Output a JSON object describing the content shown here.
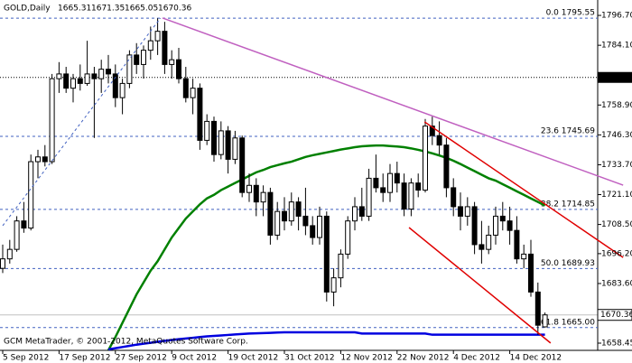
{
  "chart_data": {
    "type": "candlestick",
    "symbol": "GOLD,Daily",
    "footer": "GCM MetaTrader, © 2001-2012, MetaQuotes Software Corp.",
    "categories": [
      "5 Sep 2012",
      null,
      null,
      null,
      null,
      null,
      null,
      null,
      "17 Sep 2012",
      null,
      null,
      null,
      null,
      null,
      null,
      null,
      "27 Sep 2012",
      null,
      null,
      null,
      null,
      null,
      null,
      null,
      "9 Oct 2012",
      null,
      null,
      null,
      null,
      null,
      null,
      null,
      "19 Oct 2012",
      null,
      null,
      null,
      null,
      null,
      null,
      null,
      "31 Oct 2012",
      null,
      null,
      null,
      null,
      null,
      null,
      null,
      "12 Nov 2012",
      null,
      null,
      null,
      null,
      null,
      null,
      null,
      "22 Nov 2012",
      null,
      null,
      null,
      null,
      null,
      null,
      null,
      "4 Dec 2012",
      null,
      null,
      null,
      null,
      null,
      null,
      null,
      "14 Dec 2012",
      null,
      null,
      null,
      null,
      null
    ],
    "open": [
      1690,
      1694,
      1698,
      1710,
      1707,
      1735,
      1737,
      1735,
      1770,
      1772,
      1766,
      1770,
      1768,
      1772,
      1770,
      1774,
      1772,
      1762,
      1768,
      1780,
      1776,
      1782,
      1786,
      1790,
      1776,
      1778,
      1770,
      1762,
      1766,
      1744,
      1752,
      1738,
      1748,
      1736,
      1745,
      1722,
      1725,
      1718,
      1722,
      1704,
      1714,
      1710,
      1718,
      1712,
      1708,
      1703,
      1712,
      1680,
      1686,
      1696,
      1710,
      1716,
      1712,
      1728,
      1724,
      1722,
      1730,
      1726,
      1715,
      1726,
      1723,
      1750,
      1746,
      1742,
      1724,
      1716,
      1712,
      1716,
      1700,
      1698,
      1704,
      1712,
      1710,
      1706,
      1694,
      1696,
      1680,
      1665.31
    ],
    "high": [
      1700,
      1702,
      1712,
      1718,
      1738,
      1740,
      1742,
      1772,
      1777,
      1775,
      1772,
      1776,
      1786,
      1775,
      1778,
      1780,
      1776,
      1770,
      1782,
      1785,
      1784,
      1792,
      1795.5,
      1794,
      1782,
      1783,
      1775,
      1770,
      1768,
      1755,
      1754,
      1752,
      1750,
      1748,
      1746,
      1730,
      1728,
      1725,
      1724,
      1718,
      1720,
      1722,
      1720,
      1724,
      1712,
      1716,
      1714,
      1690,
      1698,
      1712,
      1720,
      1724,
      1732,
      1738,
      1730,
      1734,
      1735,
      1730,
      1728,
      1730,
      1753,
      1754,
      1752,
      1745,
      1728,
      1722,
      1720,
      1718,
      1710,
      1708,
      1716,
      1718,
      1716,
      1712,
      1700,
      1702,
      1684,
      1671.35
    ],
    "low": [
      1688,
      1692,
      1697,
      1705,
      1706,
      1728,
      1733,
      1734,
      1764,
      1764,
      1760,
      1765,
      1767,
      1745,
      1764,
      1768,
      1758,
      1755,
      1766,
      1772,
      1770,
      1778,
      1780,
      1772,
      1770,
      1768,
      1760,
      1755,
      1740,
      1742,
      1735,
      1736,
      1730,
      1734,
      1720,
      1718,
      1712,
      1712,
      1700,
      1702,
      1706,
      1708,
      1706,
      1704,
      1700,
      1700,
      1676,
      1674,
      1682,
      1694,
      1706,
      1710,
      1710,
      1722,
      1718,
      1718,
      1722,
      1712,
      1712,
      1720,
      1722,
      1742,
      1738,
      1720,
      1712,
      1706,
      1708,
      1696,
      1692,
      1696,
      1700,
      1706,
      1700,
      1692,
      1690,
      1678,
      1662,
      1665.05
    ],
    "close": [
      1694,
      1698,
      1710,
      1707,
      1735,
      1737,
      1735,
      1770,
      1772,
      1766,
      1770,
      1768,
      1772,
      1770,
      1774,
      1772,
      1762,
      1768,
      1780,
      1776,
      1782,
      1786,
      1790,
      1776,
      1778,
      1770,
      1762,
      1766,
      1744,
      1752,
      1738,
      1748,
      1736,
      1745,
      1722,
      1725,
      1718,
      1722,
      1704,
      1714,
      1710,
      1718,
      1712,
      1708,
      1703,
      1712,
      1680,
      1686,
      1696,
      1710,
      1716,
      1712,
      1728,
      1724,
      1722,
      1730,
      1726,
      1715,
      1726,
      1723,
      1750,
      1746,
      1742,
      1724,
      1716,
      1712,
      1716,
      1700,
      1698,
      1704,
      1712,
      1710,
      1706,
      1694,
      1696,
      1680,
      1666,
      1670.36
    ],
    "moving_averages": [
      {
        "color": "#008000",
        "values": [
          null,
          null,
          null,
          null,
          null,
          null,
          null,
          null,
          null,
          null,
          null,
          null,
          null,
          null,
          null,
          1655.4,
          1661,
          1667,
          1673,
          1679,
          1684,
          1689,
          1693,
          1698,
          1703,
          1707,
          1711,
          1714,
          1717,
          1719.5,
          1721,
          1723,
          1724.5,
          1726,
          1727.5,
          1729,
          1730.5,
          1731.5,
          1732.7,
          1733.5,
          1734.3,
          1735,
          1736,
          1737,
          1737.7,
          1738.3,
          1738.9,
          1739.5,
          1740.1,
          1740.6,
          1741.1,
          1741.5,
          1741.7,
          1741.8,
          1741.8,
          1741.6,
          1741.4,
          1741.1,
          1740.6,
          1740,
          1739.3,
          1738.5,
          1737.6,
          1736.6,
          1735.4,
          1734,
          1732.5,
          1731,
          1729.5,
          1728,
          1727,
          1725.5,
          1724,
          1722.5,
          1721,
          1719.5,
          1718,
          1716.5
        ]
      },
      {
        "color": "#0000e0",
        "values": [
          null,
          null,
          null,
          null,
          null,
          null,
          null,
          null,
          null,
          null,
          null,
          null,
          null,
          null,
          null,
          1655.8,
          1656.3,
          1656.8,
          1657.3,
          1657.8,
          1658.2,
          1658.6,
          1659,
          1659.4,
          1659.8,
          1660.1,
          1660.4,
          1660.7,
          1661,
          1661.3,
          1661.5,
          1661.7,
          1661.9,
          1662.1,
          1662.3,
          1662.5,
          1662.6,
          1662.7,
          1662.8,
          1662.9,
          1663,
          1663,
          1663,
          1663,
          1663,
          1663,
          1663,
          1663,
          1663,
          1663,
          1663,
          1662.5,
          1662.5,
          1662.5,
          1662.5,
          1662.5,
          1662.5,
          1662.5,
          1662.5,
          1662.5,
          1662.5,
          1662,
          1662,
          1662,
          1662,
          1662,
          1662,
          1662,
          1662,
          1662,
          1662,
          1662,
          1662,
          1662,
          1662,
          1662,
          1662,
          1662
        ]
      }
    ],
    "trendlines": [
      {
        "color": "#c060c0",
        "dash": false,
        "start": [
          22.7,
          1795.6
        ],
        "end": [
          88.1,
          1725.1
        ]
      },
      {
        "color": "#e00000",
        "dash": false,
        "start": [
          59.9,
          1751.8
        ],
        "end": [
          88.1,
          1694.6
        ]
      },
      {
        "color": "#e00000",
        "dash": false,
        "start": [
          57.7,
          1707.2
        ],
        "end": [
          77.8,
          1658.5
        ]
      },
      {
        "color": "#4060c0",
        "dash": true,
        "start": [
          0,
          1708
        ],
        "end": [
          22.4,
          1795.55
        ]
      }
    ],
    "fib_levels": [
      {
        "value": 1795.55,
        "label": "0.0 1795.55"
      },
      {
        "value": 1745.69,
        "label": "23.6 1745.69"
      },
      {
        "value": 1714.85,
        "label": "38.2 1714.85"
      },
      {
        "value": 1689.93,
        "label": "50.0 1689.93"
      },
      {
        "value": 1665.0,
        "label": "61.8 1665.00"
      }
    ],
    "fib_color": "#4060c0",
    "marked_level": 1770.54,
    "ylim": [
      1655.4,
      1803.2
    ],
    "yticks": [
      {
        "value": 1796.7,
        "label": "1796.70"
      },
      {
        "value": 1784.1,
        "label": "1784.10"
      },
      {
        "value": 1758.9,
        "label": "1758.90"
      },
      {
        "value": 1746.3,
        "label": "1746.30"
      },
      {
        "value": 1733.7,
        "label": "1733.70"
      },
      {
        "value": 1721.1,
        "label": "1721.10"
      },
      {
        "value": 1708.5,
        "label": "1708.50"
      },
      {
        "value": 1696.2,
        "label": "1696.20"
      },
      {
        "value": 1683.6,
        "label": "1683.60"
      },
      {
        "value": 1658.45,
        "label": "1658.45"
      }
    ]
  }
}
